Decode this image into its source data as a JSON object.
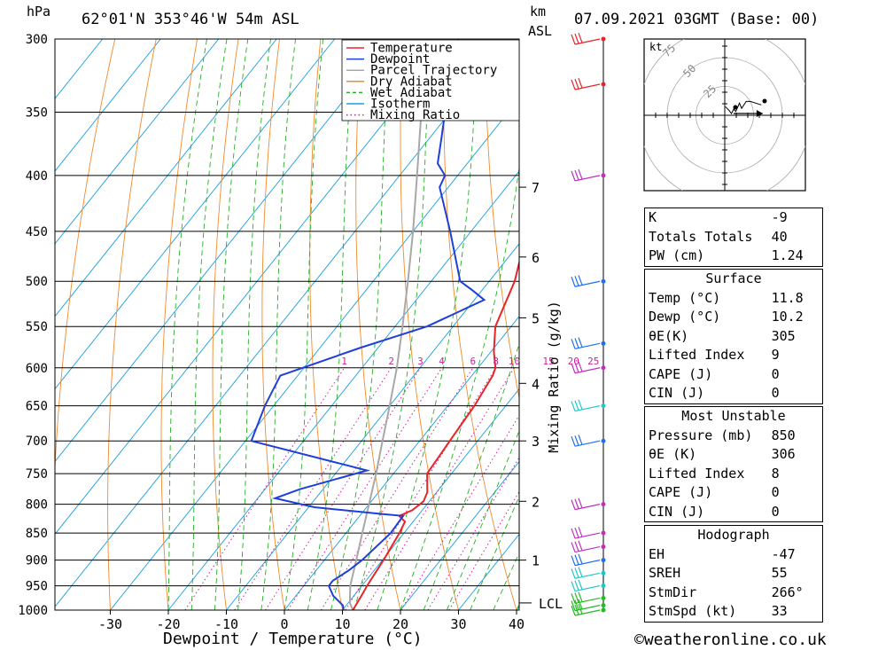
{
  "header": {
    "pressure_unit": "hPa",
    "location": "62°01'N  353°46'W  54m  ASL",
    "height_unit_line1": "km",
    "height_unit_line2": "ASL",
    "datetime": "07.09.2021  03GMT  (Base: 00)"
  },
  "footer": {
    "credit": "©weatheronline.co.uk"
  },
  "chart_data": [
    {
      "type": "line",
      "title": "",
      "xlabel": "Dewpoint / Temperature (°C)",
      "ylabel": "hPa",
      "y_scale": "log",
      "xlim": [
        -40,
        40
      ],
      "ylim": [
        1000,
        300
      ],
      "x_ticks": [
        -30,
        -20,
        -10,
        0,
        10,
        20,
        30,
        40
      ],
      "pressure_levels": [
        300,
        350,
        400,
        450,
        500,
        550,
        600,
        650,
        700,
        750,
        800,
        850,
        900,
        950,
        1000
      ],
      "height_axis": {
        "label": "km ASL",
        "ticks": [
          {
            "km": "7",
            "p": 410
          },
          {
            "km": "6",
            "p": 475
          },
          {
            "km": "5",
            "p": 540
          },
          {
            "km": "4",
            "p": 620
          },
          {
            "km": "3",
            "p": 700
          },
          {
            "km": "2",
            "p": 795
          },
          {
            "km": "1",
            "p": 900
          }
        ],
        "lcl_label": "LCL",
        "lcl_pressure": 985
      },
      "mixing_ratio_axis_label": "Mixing Ratio (g/kg)",
      "mixing_ratio_labels": [
        "1",
        "2",
        "3",
        "4",
        "6",
        "8",
        "10",
        "15",
        "20",
        "25"
      ],
      "legend_position": "top-right",
      "legend": [
        {
          "name": "Temperature",
          "color": "#e8242a",
          "style": "solid"
        },
        {
          "name": "Dewpoint",
          "color": "#1f3fd9",
          "style": "solid"
        },
        {
          "name": "Parcel Trajectory",
          "color": "#a8a8a8",
          "style": "solid"
        },
        {
          "name": "Dry Adiabat",
          "color": "#f08a2c",
          "style": "solid"
        },
        {
          "name": "Wet Adiabat",
          "color": "#22b022",
          "style": "dashed"
        },
        {
          "name": "Isotherm",
          "color": "#1aa0e0",
          "style": "solid"
        },
        {
          "name": "Mixing Ratio",
          "color": "#d0209a",
          "style": "dotted"
        }
      ],
      "series": [
        {
          "name": "Temperature",
          "color": "#e8242a",
          "points": [
            [
              1000,
              11.8
            ],
            [
              970,
              11.3
            ],
            [
              950,
              10.9
            ],
            [
              900,
              10.2
            ],
            [
              850,
              9.2
            ],
            [
              830,
              8.6
            ],
            [
              820,
              6.8
            ],
            [
              810,
              8.3
            ],
            [
              795,
              9.0
            ],
            [
              780,
              8.4
            ],
            [
              750,
              5.8
            ],
            [
              700,
              5.2
            ],
            [
              650,
              4.6
            ],
            [
              610,
              3.6
            ],
            [
              600,
              3.0
            ],
            [
              580,
              0.5
            ],
            [
              550,
              -2.7
            ],
            [
              500,
              -5.6
            ],
            [
              450,
              -10.4
            ],
            [
              410,
              -14.8
            ],
            [
              350,
              -23.7
            ],
            [
              300,
              -33.5
            ]
          ]
        },
        {
          "name": "Dewpoint",
          "color": "#1f3fd9",
          "points": [
            [
              1000,
              10.2
            ],
            [
              990,
              9.4
            ],
            [
              970,
              6.4
            ],
            [
              950,
              4.3
            ],
            [
              940,
              4.3
            ],
            [
              920,
              5.6
            ],
            [
              900,
              6.5
            ],
            [
              850,
              7.7
            ],
            [
              820,
              7.5
            ],
            [
              817,
              4.0
            ],
            [
              805,
              -9.0
            ],
            [
              790,
              -17.0
            ],
            [
              775,
              -14.0
            ],
            [
              745,
              -5.0
            ],
            [
              700,
              -29.0
            ],
            [
              650,
              -31.5
            ],
            [
              610,
              -33.0
            ],
            [
              575,
              -23.0
            ],
            [
              550,
              -14.5
            ],
            [
              520,
              -8.3
            ],
            [
              510,
              -11.5
            ],
            [
              500,
              -15.0
            ],
            [
              450,
              -23.6
            ],
            [
              410,
              -31.5
            ],
            [
              400,
              -32.2
            ],
            [
              390,
              -35.1
            ],
            [
              370,
              -37.9
            ],
            [
              350,
              -40.9
            ],
            [
              330,
              -44.1
            ],
            [
              300,
              -48.7
            ]
          ]
        },
        {
          "name": "Parcel Trajectory",
          "color": "#a8a8a8",
          "points": [
            [
              1000,
              11.8
            ],
            [
              985,
              10.3
            ],
            [
              950,
              8.0
            ],
            [
              900,
              5.5
            ],
            [
              850,
              2.8
            ],
            [
              800,
              0.0
            ],
            [
              750,
              -3.0
            ],
            [
              700,
              -6.4
            ],
            [
              650,
              -10.0
            ],
            [
              600,
              -14.0
            ],
            [
              550,
              -18.7
            ],
            [
              500,
              -24.0
            ],
            [
              450,
              -30.0
            ],
            [
              400,
              -37.0
            ],
            [
              350,
              -45.0
            ],
            [
              300,
              -54.0
            ]
          ]
        }
      ]
    },
    {
      "type": "scatter",
      "title": "Hodograph",
      "unit_label": "kt",
      "ring_labels": [
        "25",
        "50",
        "75"
      ],
      "points_kt": [
        [
          1.0,
          2.5
        ],
        [
          3.3,
          2.0
        ],
        [
          6.2,
          1.4
        ],
        [
          9.8,
          0.5
        ],
        [
          13.0,
          1.8
        ],
        [
          16.0,
          1.1
        ],
        [
          21.3,
          3.5
        ],
        [
          24.5,
          2.0
        ],
        [
          31.0,
          4.0
        ],
        [
          37.0,
          4.0
        ],
        [
          53.0,
          3.0
        ]
      ],
      "storm_motion_kt": [
        33,
        0
      ]
    }
  ],
  "wind_barbs": [
    {
      "p": 1000,
      "color": "#22bb22"
    },
    {
      "p": 990,
      "color": "#22bb22"
    },
    {
      "p": 975,
      "color": "#22bb22"
    },
    {
      "p": 950,
      "color": "#1fc8c8"
    },
    {
      "p": 925,
      "color": "#1fc8c8"
    },
    {
      "p": 900,
      "color": "#1f6ff0"
    },
    {
      "p": 875,
      "color": "#c030c0"
    },
    {
      "p": 850,
      "color": "#c030c0"
    },
    {
      "p": 800,
      "color": "#c030c0"
    },
    {
      "p": 700,
      "color": "#1f6ff0"
    },
    {
      "p": 650,
      "color": "#1fc8c8"
    },
    {
      "p": 600,
      "color": "#c030c0"
    },
    {
      "p": 570,
      "color": "#1f6ff0"
    },
    {
      "p": 500,
      "color": "#1f6ff0"
    },
    {
      "p": 400,
      "color": "#c030c0"
    },
    {
      "p": 330,
      "color": "#e8242a"
    },
    {
      "p": 300,
      "color": "#e8242a"
    }
  ],
  "indices": {
    "block1": [
      {
        "label": "K",
        "value": "-9"
      },
      {
        "label": "Totals Totals",
        "value": "40"
      },
      {
        "label": "PW (cm)",
        "value": "1.24"
      }
    ],
    "surface_title": "Surface",
    "surface": [
      {
        "label": "Temp (°C)",
        "value": "11.8"
      },
      {
        "label": "Dewp (°C)",
        "value": "10.2"
      },
      {
        "label": "θE(K)",
        "value": "305"
      },
      {
        "label": "Lifted Index",
        "value": "9"
      },
      {
        "label": "CAPE (J)",
        "value": "0"
      },
      {
        "label": "CIN (J)",
        "value": "0"
      }
    ],
    "mu_title": "Most Unstable",
    "mu": [
      {
        "label": "Pressure (mb)",
        "value": "850"
      },
      {
        "label": "θE (K)",
        "value": "306"
      },
      {
        "label": "Lifted Index",
        "value": "8"
      },
      {
        "label": "CAPE (J)",
        "value": "0"
      },
      {
        "label": "CIN (J)",
        "value": "0"
      }
    ],
    "hodo_title": "Hodograph",
    "hodo": [
      {
        "label": "EH",
        "value": "-47"
      },
      {
        "label": "SREH",
        "value": "55"
      },
      {
        "label": "StmDir",
        "value": "266°"
      },
      {
        "label": "StmSpd (kt)",
        "value": "33"
      }
    ]
  }
}
